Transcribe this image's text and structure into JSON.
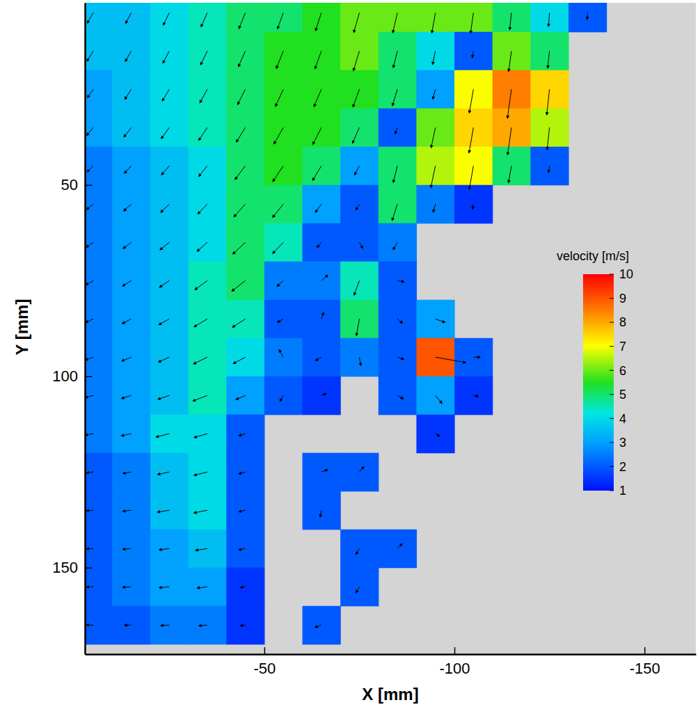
{
  "chart_data": {
    "type": "vector_field",
    "x_label": "X [mm]",
    "y_label": "Y [mm]",
    "xlim": [
      -2.8,
      -163.5
    ],
    "ylim": [
      2.4,
      172.6
    ],
    "xticks": [
      -50,
      -100,
      -150
    ],
    "yticks": [
      50,
      100,
      150
    ],
    "x": [
      -5,
      -15,
      -25,
      -35,
      -45,
      -55,
      -65,
      -75,
      -85,
      -95,
      -105,
      -115,
      -125,
      -135,
      -145,
      -155
    ],
    "y": [
      5,
      15,
      25,
      35,
      45,
      55,
      65,
      75,
      85,
      95,
      105,
      115,
      125,
      135,
      145,
      155,
      165
    ],
    "speed": [
      [
        3.5,
        3.5,
        4,
        4.5,
        5,
        5,
        5.5,
        6,
        6,
        6,
        6,
        5,
        4,
        2,
        null,
        null
      ],
      [
        3.5,
        3.5,
        4,
        4.5,
        5,
        5.5,
        5.5,
        6,
        5,
        4,
        2,
        6,
        5,
        null,
        null,
        null
      ],
      [
        3,
        3.5,
        4,
        4.5,
        5,
        5.5,
        5.5,
        5.5,
        5,
        3,
        7,
        8.5,
        7.5,
        null,
        null,
        null
      ],
      [
        3,
        3.5,
        4,
        4.5,
        5,
        5.5,
        5.5,
        5,
        2,
        6,
        7.5,
        8,
        6.5,
        null,
        null,
        null
      ],
      [
        2.5,
        3,
        3.5,
        4,
        5,
        5.5,
        5,
        3,
        5,
        6.5,
        7,
        5,
        2,
        null,
        null,
        null
      ],
      [
        2.5,
        3,
        3.5,
        4,
        5,
        5,
        3,
        2,
        5,
        2.5,
        1.5,
        null,
        null,
        null,
        null,
        null
      ],
      [
        2.5,
        3,
        3.5,
        4,
        5,
        4.5,
        2,
        2,
        2.5,
        null,
        null,
        null,
        null,
        null,
        null,
        null
      ],
      [
        2.5,
        3,
        3.5,
        4.5,
        5,
        2.5,
        2.5,
        4.5,
        2,
        null,
        null,
        null,
        null,
        null,
        null,
        null
      ],
      [
        2.5,
        3,
        3.5,
        4.5,
        4.5,
        2,
        2,
        5,
        2,
        3,
        null,
        null,
        null,
        null,
        null,
        null
      ],
      [
        2.5,
        3,
        3.5,
        4.5,
        4,
        2.5,
        2,
        2.5,
        2,
        9,
        2,
        null,
        null,
        null,
        null,
        null
      ],
      [
        2.5,
        3,
        3.5,
        4.5,
        3,
        2,
        1.5,
        null,
        2,
        3,
        1.5,
        null,
        null,
        null,
        null,
        null
      ],
      [
        2.5,
        3,
        4,
        4,
        2,
        null,
        null,
        null,
        null,
        1.5,
        null,
        null,
        null,
        null,
        null,
        null
      ],
      [
        2,
        2.5,
        3.5,
        4,
        2,
        null,
        2,
        2,
        null,
        null,
        null,
        null,
        null,
        null,
        null,
        null
      ],
      [
        2,
        2.5,
        3.5,
        4,
        2,
        null,
        2,
        null,
        null,
        null,
        null,
        null,
        null,
        null,
        null,
        null
      ],
      [
        2,
        2.5,
        3,
        3.5,
        2,
        null,
        null,
        2,
        2,
        null,
        null,
        null,
        null,
        null,
        null,
        null
      ],
      [
        2,
        2.5,
        3,
        3,
        1.5,
        null,
        null,
        2,
        null,
        null,
        null,
        null,
        null,
        null,
        null,
        null
      ],
      [
        2,
        2,
        2.5,
        2.5,
        1.5,
        null,
        2,
        null,
        null,
        null,
        null,
        null,
        null,
        null,
        null,
        null
      ]
    ],
    "angle": [
      [
        60,
        62,
        64,
        66,
        68,
        70,
        72,
        74,
        77,
        80,
        82,
        84,
        86,
        88,
        null,
        null
      ],
      [
        58,
        60,
        62,
        64,
        66,
        68,
        70,
        73,
        76,
        78,
        80,
        82,
        84,
        null,
        null,
        null
      ],
      [
        55,
        57,
        59,
        61,
        63,
        65,
        67,
        70,
        73,
        75,
        80,
        82,
        84,
        null,
        null,
        null
      ],
      [
        50,
        52,
        54,
        56,
        58,
        60,
        63,
        66,
        70,
        78,
        80,
        82,
        84,
        null,
        null,
        null
      ],
      [
        45,
        47,
        49,
        51,
        53,
        56,
        59,
        62,
        76,
        78,
        80,
        80,
        82,
        null,
        null,
        null
      ],
      [
        40,
        42,
        44,
        46,
        48,
        51,
        54,
        60,
        72,
        75,
        80,
        null,
        null,
        null,
        null,
        null
      ],
      [
        35,
        37,
        39,
        41,
        43,
        46,
        50,
        120,
        60,
        null,
        null,
        null,
        null,
        null,
        null,
        null
      ],
      [
        30,
        32,
        34,
        36,
        38,
        42,
        220,
        70,
        170,
        null,
        null,
        null,
        null,
        null,
        null,
        null
      ],
      [
        25,
        27,
        29,
        31,
        33,
        30,
        250,
        80,
        140,
        160,
        null,
        null,
        null,
        null,
        null,
        null
      ],
      [
        20,
        22,
        24,
        26,
        28,
        300,
        30,
        100,
        160,
        170,
        180,
        null,
        null,
        null,
        null,
        null
      ],
      [
        15,
        17,
        19,
        21,
        23,
        60,
        200,
        null,
        150,
        130,
        170,
        null,
        null,
        null,
        null,
        null
      ],
      [
        10,
        12,
        14,
        16,
        18,
        null,
        null,
        null,
        null,
        150,
        null,
        null,
        null,
        null,
        null,
        null
      ],
      [
        8,
        10,
        12,
        14,
        16,
        null,
        200,
        230,
        null,
        null,
        null,
        null,
        null,
        null,
        null,
        null
      ],
      [
        5,
        7,
        9,
        11,
        13,
        null,
        80,
        null,
        null,
        null,
        null,
        null,
        null,
        null,
        null,
        null
      ],
      [
        3,
        5,
        7,
        9,
        11,
        null,
        null,
        60,
        225,
        null,
        null,
        null,
        null,
        null,
        null,
        null
      ],
      [
        2,
        3,
        5,
        7,
        9,
        null,
        null,
        60,
        null,
        null,
        null,
        null,
        null,
        null,
        null,
        null
      ],
      [
        0,
        1,
        3,
        5,
        7,
        null,
        20,
        null,
        null,
        null,
        null,
        null,
        null,
        null,
        null,
        null
      ]
    ],
    "colorbar": {
      "title": "velocity [m/s]",
      "range": [
        1,
        10
      ],
      "ticks": [
        1,
        2,
        3,
        4,
        5,
        6,
        7,
        8,
        9,
        10
      ]
    }
  }
}
